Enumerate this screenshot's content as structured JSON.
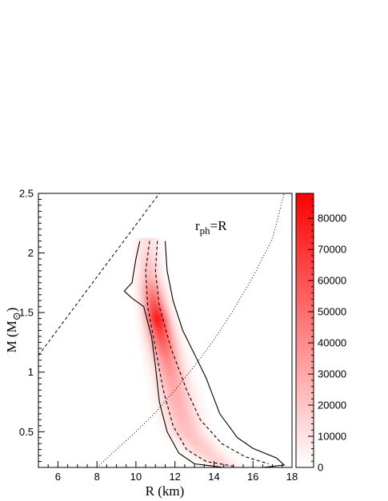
{
  "chart_data": {
    "type": "heatmap",
    "xlabel": "R (km)",
    "ylabel_main": "M (M",
    "ylabel_sub": "⊙",
    "ylabel_close": ")",
    "xlim": [
      5,
      18
    ],
    "ylim": [
      0.2,
      2.5
    ],
    "xticks": [
      6,
      8,
      10,
      12,
      14,
      16,
      18
    ],
    "yticks": [
      0.5,
      1,
      1.5,
      2,
      2.5
    ],
    "colorbar": {
      "range": [
        0,
        88000
      ],
      "ticks": [
        0,
        10000,
        20000,
        30000,
        40000,
        50000,
        60000,
        70000,
        80000
      ],
      "color_low": "#ffffff",
      "color_high": "#ff0000"
    },
    "annotation": {
      "main": "r",
      "sub": "ph",
      "rest": "=R"
    },
    "density_ridge": [
      {
        "m": 0.2,
        "r": 14.6,
        "width": 0.55,
        "peak": 12000
      },
      {
        "m": 0.35,
        "r": 13.4,
        "width": 0.6,
        "peak": 18000
      },
      {
        "m": 0.5,
        "r": 12.6,
        "width": 0.6,
        "peak": 22000
      },
      {
        "m": 0.7,
        "r": 12.2,
        "width": 0.6,
        "peak": 26000
      },
      {
        "m": 0.9,
        "r": 11.9,
        "width": 0.55,
        "peak": 30000
      },
      {
        "m": 1.1,
        "r": 11.6,
        "width": 0.5,
        "peak": 40000
      },
      {
        "m": 1.3,
        "r": 11.3,
        "width": 0.45,
        "peak": 60000
      },
      {
        "m": 1.45,
        "r": 11.1,
        "width": 0.4,
        "peak": 80000
      },
      {
        "m": 1.6,
        "r": 10.9,
        "width": 0.4,
        "peak": 55000
      },
      {
        "m": 1.8,
        "r": 10.7,
        "width": 0.4,
        "peak": 25000
      },
      {
        "m": 2.05,
        "r": 10.6,
        "width": 0.4,
        "peak": 12000
      }
    ],
    "contour_outer": [
      [
        10.2,
        2.1
      ],
      [
        10.0,
        1.95
      ],
      [
        9.8,
        1.75
      ],
      [
        9.4,
        1.68
      ],
      [
        9.8,
        1.62
      ],
      [
        10.4,
        1.55
      ],
      [
        10.8,
        1.3
      ],
      [
        11.0,
        1.05
      ],
      [
        11.2,
        0.75
      ],
      [
        11.6,
        0.5
      ],
      [
        12.2,
        0.32
      ],
      [
        13.0,
        0.23
      ],
      [
        14.5,
        0.2
      ],
      [
        16.5,
        0.2
      ],
      [
        17.6,
        0.22
      ],
      [
        17.2,
        0.28
      ],
      [
        16.0,
        0.36
      ],
      [
        15.2,
        0.45
      ],
      [
        14.3,
        0.65
      ],
      [
        13.6,
        0.95
      ],
      [
        13.0,
        1.15
      ],
      [
        12.4,
        1.35
      ],
      [
        11.9,
        1.6
      ],
      [
        11.6,
        1.85
      ],
      [
        11.5,
        2.1
      ]
    ],
    "contour_inner_left": [
      [
        10.7,
        2.1
      ],
      [
        10.5,
        1.85
      ],
      [
        10.6,
        1.55
      ],
      [
        11.0,
        1.2
      ],
      [
        11.4,
        0.85
      ],
      [
        11.9,
        0.55
      ],
      [
        12.6,
        0.35
      ],
      [
        13.6,
        0.25
      ],
      [
        15.0,
        0.21
      ]
    ],
    "contour_inner_right": [
      [
        11.1,
        2.1
      ],
      [
        11.0,
        1.85
      ],
      [
        11.2,
        1.55
      ],
      [
        11.8,
        1.2
      ],
      [
        12.6,
        0.85
      ],
      [
        13.3,
        0.6
      ],
      [
        14.4,
        0.4
      ],
      [
        15.6,
        0.29
      ],
      [
        16.8,
        0.23
      ]
    ],
    "constraint_line_dashed": [
      [
        5.0,
        1.14
      ],
      [
        11.2,
        2.5
      ]
    ],
    "photon_sphere_line_dotted": [
      [
        8.0,
        0.2
      ],
      [
        9.0,
        0.35
      ],
      [
        10.0,
        0.5
      ],
      [
        11.0,
        0.66
      ],
      [
        12.0,
        0.85
      ],
      [
        13.0,
        1.05
      ],
      [
        14.0,
        1.27
      ],
      [
        15.0,
        1.52
      ],
      [
        16.0,
        1.8
      ],
      [
        17.0,
        2.12
      ],
      [
        17.6,
        2.5
      ]
    ]
  }
}
